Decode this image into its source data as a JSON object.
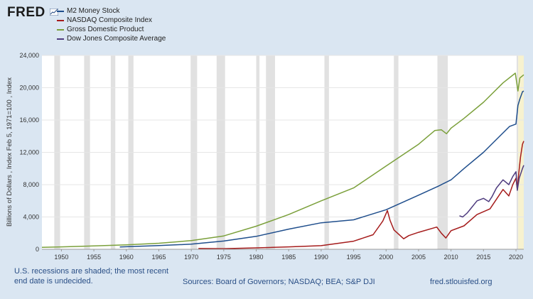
{
  "brand": {
    "logo_text": "FRED"
  },
  "footer": {
    "recession_note_line1": "U.S. recessions are shaded; the most recent",
    "recession_note_line2": "end date is undecided.",
    "sources": "Sources: Board of Governors; NASDAQ; BEA; S&P DJI",
    "site": "fred.stlouisfed.org"
  },
  "chart_data": {
    "type": "line",
    "ylabel": "Billions of Dollars , Index Feb 5, 1971=100 , Index",
    "xlim": [
      1947,
      2021.2
    ],
    "ylim": [
      0,
      24000
    ],
    "y_ticks": [
      0,
      4000,
      8000,
      12000,
      16000,
      20000,
      24000
    ],
    "y_tick_labels": [
      "0",
      "4,000",
      "8,000",
      "12,000",
      "16,000",
      "20,000",
      "24,000"
    ],
    "x_ticks": [
      1950,
      1955,
      1960,
      1965,
      1970,
      1975,
      1980,
      1985,
      1990,
      1995,
      2000,
      2005,
      2010,
      2015,
      2020
    ],
    "grid": true,
    "legend_position": "top-left",
    "recessions": [
      [
        1948.9,
        1949.8
      ],
      [
        1953.5,
        1954.4
      ],
      [
        1957.6,
        1958.3
      ],
      [
        1960.3,
        1961.1
      ],
      [
        1969.9,
        1970.9
      ],
      [
        1973.9,
        1975.2
      ],
      [
        1980.0,
        1980.5
      ],
      [
        1981.5,
        1982.9
      ],
      [
        1990.5,
        1991.2
      ],
      [
        2001.2,
        2001.9
      ],
      [
        2007.9,
        2009.5
      ],
      [
        2020.1,
        2020.35
      ]
    ],
    "undecided_recession": [
      2020.35,
      2021.2
    ],
    "series": [
      {
        "name": "M2 Money Stock",
        "color": "#1f4e8c",
        "x": [
          1959,
          1965,
          1970,
          1975,
          1980,
          1985,
          1990,
          1995,
          2000,
          2005,
          2008,
          2010,
          2012,
          2015,
          2019,
          2020,
          2020.3,
          2020.6,
          2021,
          2021.2
        ],
        "y": [
          290,
          460,
          630,
          1020,
          1600,
          2500,
          3280,
          3650,
          4900,
          6700,
          7800,
          8600,
          10000,
          12000,
          15200,
          15500,
          17800,
          18600,
          19500,
          19600
        ]
      },
      {
        "name": "NASDAQ Composite Index",
        "color": "#a51c1c",
        "x": [
          1971.1,
          1975,
          1980,
          1985,
          1990,
          1995,
          1998,
          1999.5,
          2000.2,
          2000.6,
          2001.2,
          2002.7,
          2003.5,
          2005,
          2007.8,
          2008.5,
          2009.2,
          2010,
          2012,
          2014,
          2016,
          2018,
          2018.9,
          2019.5,
          2020,
          2020.2,
          2020.4,
          2020.7,
          2021,
          2021.2
        ],
        "y": [
          100,
          80,
          180,
          300,
          450,
          1000,
          1800,
          3500,
          4800,
          3600,
          2400,
          1300,
          1700,
          2100,
          2750,
          2000,
          1400,
          2300,
          2900,
          4300,
          5000,
          7400,
          6600,
          8000,
          8800,
          7400,
          9200,
          11400,
          13000,
          13400
        ]
      },
      {
        "name": "Gross Domestic Product",
        "color": "#7ba03b",
        "x": [
          1947,
          1950,
          1955,
          1960,
          1965,
          1970,
          1975,
          1980,
          1985,
          1990,
          1995,
          2000,
          2005,
          2007.5,
          2008.5,
          2009.3,
          2010,
          2012,
          2015,
          2018,
          2019.9,
          2020.3,
          2020.6,
          2021.2
        ],
        "y": [
          250,
          300,
          420,
          550,
          750,
          1070,
          1650,
          2860,
          4300,
          6000,
          7600,
          10300,
          13000,
          14700,
          14800,
          14300,
          15000,
          16200,
          18200,
          20600,
          21800,
          19600,
          21200,
          21600
        ]
      },
      {
        "name": "Dow Jones Composite Average",
        "color": "#4e3b7e",
        "x": [
          2011.3,
          2011.8,
          2012.5,
          2013,
          2014,
          2015,
          2015.8,
          2016.3,
          2017,
          2018,
          2018.9,
          2019.5,
          2020,
          2020.2,
          2020.5,
          2021,
          2021.2
        ],
        "y": [
          4150,
          4000,
          4500,
          5000,
          6000,
          6300,
          5900,
          6500,
          7600,
          8600,
          8000,
          9000,
          9600,
          7300,
          8800,
          10000,
          10400
        ]
      }
    ]
  }
}
